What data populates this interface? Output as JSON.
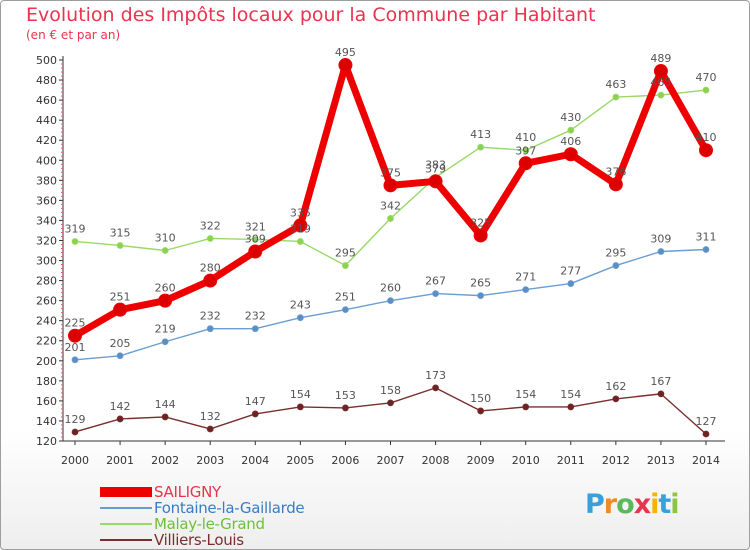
{
  "page": {
    "title": "Evolution des Impôts locaux pour la Commune par Habitant",
    "subtitle": "(en € et par an)"
  },
  "logo": {
    "letters": [
      {
        "ch": "P",
        "color": "#3aa0dc"
      },
      {
        "ch": "r",
        "color": "#f08a24"
      },
      {
        "ch": "o",
        "color": "#5cb85c"
      },
      {
        "ch": "x",
        "color": "#e8344e"
      },
      {
        "ch": "i",
        "color": "#f5b400"
      },
      {
        "ch": "t",
        "color": "#3aa0dc"
      },
      {
        "ch": "i",
        "color": "#8cc63f"
      }
    ]
  },
  "chart_data": {
    "type": "line",
    "title": "Evolution des Impôts locaux pour la Commune par Habitant",
    "subtitle": "(en € et par an)",
    "xlabel": "",
    "ylabel": "",
    "x": [
      "2000",
      "2001",
      "2002",
      "2003",
      "2004",
      "2005",
      "2006",
      "2007",
      "2008",
      "2009",
      "2010",
      "2011",
      "2012",
      "2013",
      "2014"
    ],
    "ylim": [
      120,
      500
    ],
    "yticks": [
      120,
      140,
      160,
      180,
      200,
      220,
      240,
      260,
      280,
      300,
      320,
      340,
      360,
      380,
      400,
      420,
      440,
      460,
      480,
      500
    ],
    "grid": false,
    "legend": "bottom-left",
    "series": [
      {
        "name": "SAILIGNY",
        "color": "#ee0000",
        "marker_color": "#dd0000",
        "label_color": "#555555",
        "width": 7,
        "values": [
          225,
          251,
          260,
          280,
          309,
          335,
          495,
          375,
          379,
          325,
          397,
          406,
          376,
          489,
          410
        ]
      },
      {
        "name": "Fontaine-la-Gaillarde",
        "color": "#6a9ed0",
        "marker_color": "#5b8ec4",
        "label_color": "#555555",
        "width": 1.4,
        "values": [
          201,
          205,
          219,
          232,
          232,
          243,
          251,
          260,
          267,
          265,
          271,
          277,
          295,
          309,
          311
        ]
      },
      {
        "name": "Malay-le-Grand",
        "color": "#9ad86a",
        "marker_color": "#8bd34f",
        "label_color": "#555555",
        "width": 1.4,
        "values": [
          319,
          315,
          310,
          322,
          321,
          319,
          295,
          342,
          383,
          413,
          410,
          430,
          463,
          465,
          470
        ]
      },
      {
        "name": "Villiers-Louis",
        "color": "#7a2e2e",
        "marker_color": "#6d2323",
        "label_color": "#555555",
        "width": 1.4,
        "values": [
          129,
          142,
          144,
          132,
          147,
          154,
          153,
          158,
          173,
          150,
          154,
          154,
          162,
          167,
          127
        ]
      }
    ]
  }
}
